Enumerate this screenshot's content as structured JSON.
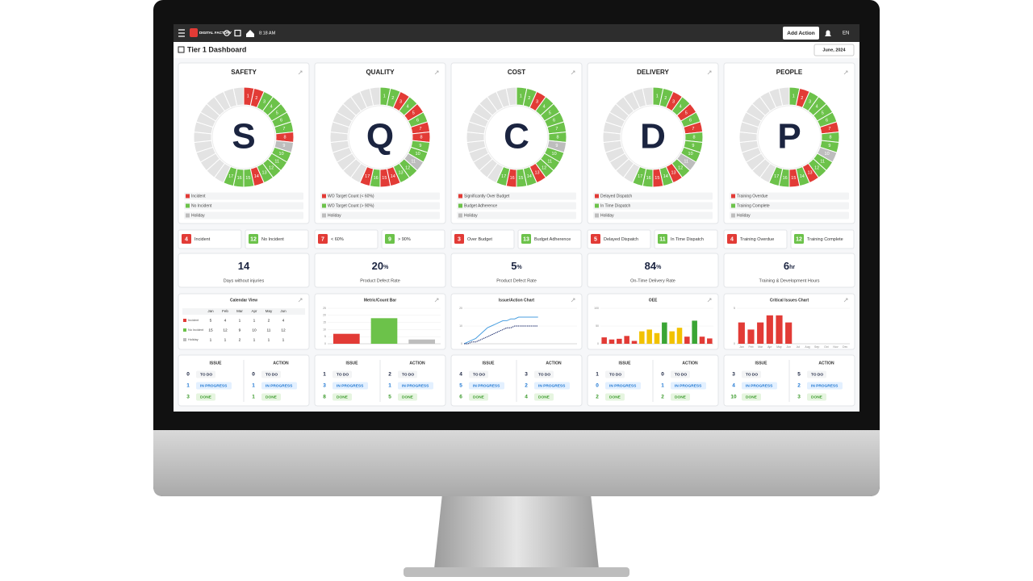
{
  "topbar": {
    "brand": "DIGITAL FACTORY",
    "time": "8:18 AM",
    "button": "Add Action",
    "language": "EN"
  },
  "header": {
    "title": "Tier 1 Dashboard",
    "period": "June, 2024"
  },
  "status_colors": {
    "b": "#e23b36",
    "g": "#6cc24a",
    "h": "#bdbdbd"
  },
  "labels": {
    "issue": "ISSUE",
    "action": "ACTION",
    "todo": "TO DO",
    "in_progress": "IN PROGRESS",
    "done": "DONE"
  },
  "pillars": [
    {
      "title": "SAFETY",
      "letter": "S",
      "days": [
        1,
        2,
        3,
        4,
        5,
        6,
        7,
        8,
        9,
        10,
        11,
        12,
        13,
        14,
        15,
        16,
        17
      ],
      "status": [
        "b",
        "b",
        "g",
        "g",
        "g",
        "g",
        "g",
        "b",
        "h",
        "g",
        "g",
        "g",
        "g",
        "b",
        "g",
        "g",
        "g"
      ],
      "legend": [
        "Incident",
        "No Incident",
        "Holiday"
      ],
      "counts": [
        {
          "value": 4,
          "label": "Incident"
        },
        {
          "value": 12,
          "label": "No Incident"
        }
      ],
      "kpi": {
        "value": 14,
        "label": "Days without injuries"
      },
      "issue": [
        0,
        1,
        3
      ],
      "action": [
        0,
        1,
        1
      ]
    },
    {
      "title": "QUALITY",
      "letter": "Q",
      "days": [
        1,
        2,
        3,
        4,
        5,
        6,
        7,
        8,
        9,
        10,
        11,
        12,
        13,
        14,
        15,
        16,
        17
      ],
      "status": [
        "g",
        "g",
        "b",
        "g",
        "b",
        "g",
        "b",
        "b",
        "g",
        "g",
        "h",
        "g",
        "g",
        "b",
        "b",
        "g",
        "b"
      ],
      "legend": [
        "WO Target Count (< 60%)",
        "WO Target Count (> 90%)",
        "Holiday"
      ],
      "counts": [
        {
          "value": 7,
          "label": "< 60%"
        },
        {
          "value": 9,
          "label": "> 90%"
        }
      ],
      "kpi": {
        "value": 20,
        "unit": "%",
        "label": "Product Defect Rate"
      },
      "issue": [
        1,
        3,
        8
      ],
      "action": [
        2,
        1,
        5
      ]
    },
    {
      "title": "COST",
      "letter": "C",
      "days": [
        1,
        2,
        3,
        4,
        5,
        6,
        7,
        8,
        9,
        10,
        11,
        12,
        13,
        14,
        15,
        16,
        17
      ],
      "status": [
        "g",
        "g",
        "b",
        "g",
        "g",
        "g",
        "g",
        "g",
        "h",
        "g",
        "g",
        "g",
        "b",
        "g",
        "g",
        "b",
        "g"
      ],
      "legend": [
        "Significantly Over Budget",
        "Budget Adherence",
        "Holiday"
      ],
      "counts": [
        {
          "value": 3,
          "label": "Over Budget"
        },
        {
          "value": 13,
          "label": "Budget Adherence"
        }
      ],
      "kpi": {
        "value": 5,
        "unit": "%",
        "label": "Product Defect Rate"
      },
      "issue": [
        4,
        5,
        6
      ],
      "action": [
        3,
        2,
        4
      ]
    },
    {
      "title": "DELIVERY",
      "letter": "D",
      "days": [
        1,
        2,
        3,
        4,
        5,
        6,
        7,
        8,
        9,
        10,
        11,
        12,
        13,
        14,
        15,
        16,
        17
      ],
      "status": [
        "g",
        "g",
        "b",
        "g",
        "b",
        "g",
        "b",
        "g",
        "g",
        "g",
        "h",
        "g",
        "b",
        "g",
        "b",
        "g",
        "g"
      ],
      "legend": [
        "Delayed Dispatch",
        "In Time Dispatch",
        "Holiday"
      ],
      "counts": [
        {
          "value": 5,
          "label": "Delayed Dispatch"
        },
        {
          "value": 11,
          "label": "In Time Dispatch"
        }
      ],
      "kpi": {
        "value": 84,
        "unit": "%",
        "label": "On-Time Delivery Rate"
      },
      "issue": [
        1,
        0,
        2
      ],
      "action": [
        0,
        1,
        2
      ]
    },
    {
      "title": "PEOPLE",
      "letter": "P",
      "days": [
        1,
        2,
        3,
        4,
        5,
        6,
        7,
        8,
        9,
        10,
        11,
        12,
        13,
        14,
        15,
        16,
        17
      ],
      "status": [
        "g",
        "b",
        "g",
        "g",
        "g",
        "g",
        "b",
        "g",
        "g",
        "h",
        "g",
        "g",
        "b",
        "g",
        "b",
        "g",
        "g"
      ],
      "legend": [
        "Training Overdue",
        "Training Complete",
        "Holiday"
      ],
      "counts": [
        {
          "value": 4,
          "label": "Training Overdue"
        },
        {
          "value": 12,
          "label": "Training Complete"
        }
      ],
      "kpi": {
        "value": 6,
        "unit": "hr",
        "label": "Training & Development Hours"
      },
      "issue": [
        3,
        4,
        10
      ],
      "action": [
        5,
        2,
        3
      ]
    }
  ],
  "charts": [
    {
      "type": "table",
      "title": "Calendar View",
      "months": [
        "Jan",
        "Feb",
        "Mar",
        "Apr",
        "May",
        "Jun"
      ],
      "rows": [
        {
          "name": "Incident",
          "color": "#e23b36",
          "values": [
            5,
            4,
            1,
            1,
            2,
            4
          ]
        },
        {
          "name": "No Incident",
          "color": "#6cc24a",
          "values": [
            15,
            12,
            9,
            10,
            11,
            12
          ]
        },
        {
          "name": "Holiday",
          "color": "#bdbdbd",
          "values": [
            1,
            1,
            2,
            1,
            1,
            1
          ]
        }
      ]
    },
    {
      "type": "bar",
      "title": "Metric/Count Bar",
      "categories": [
        null,
        null,
        null
      ],
      "values": [
        7,
        18,
        3
      ],
      "colors": [
        "#e23b36",
        "#6cc24a",
        "#bdbdbd"
      ],
      "ylim": [
        0,
        25
      ],
      "yticks": [
        0,
        5,
        10,
        15,
        20,
        25
      ]
    },
    {
      "type": "line",
      "title": "Issue/Action Chart",
      "x": [
        1,
        2,
        3,
        4,
        5,
        6,
        7,
        8,
        9,
        10,
        11,
        12,
        13,
        14,
        15,
        16,
        17,
        18,
        19,
        20
      ],
      "xlim": [
        1,
        30
      ],
      "ylim": [
        0,
        20
      ],
      "yticks": [
        0,
        10,
        20
      ],
      "series": [
        {
          "color": "#4a9fe0",
          "values": [
            0,
            1,
            2,
            3,
            5,
            7,
            9,
            10,
            11,
            12,
            13,
            13,
            14,
            14,
            15,
            15,
            15,
            15,
            15,
            15
          ]
        },
        {
          "color": "#1f2f6e",
          "values": [
            0,
            0,
            1,
            1,
            2,
            3,
            4,
            5,
            6,
            7,
            8,
            9,
            9,
            10,
            10,
            10,
            10,
            10,
            10,
            10
          ]
        }
      ]
    },
    {
      "type": "bar",
      "title": "OEE",
      "categories": [
        null,
        null,
        null,
        null,
        null,
        null,
        null,
        null,
        null,
        null,
        null,
        null,
        null,
        null,
        null
      ],
      "values": [
        18,
        12,
        14,
        22,
        8,
        35,
        40,
        30,
        60,
        35,
        45,
        20,
        65,
        20,
        15
      ],
      "colors": [
        "#e23b36",
        "#e23b36",
        "#e23b36",
        "#e23b36",
        "#e23b36",
        "#f2c200",
        "#f2c200",
        "#f2c200",
        "#3aa535",
        "#f2c200",
        "#f2c200",
        "#e23b36",
        "#3aa535",
        "#e23b36",
        "#e23b36"
      ],
      "ylim": [
        0,
        100
      ],
      "yticks": [
        0,
        50,
        100
      ]
    },
    {
      "type": "bar",
      "title": "Critical Issues Chart",
      "categories": [
        "Jan",
        "Feb",
        "Mar",
        "Apr",
        "May",
        "Jun",
        "Jul",
        "Aug",
        "Sep",
        "Oct",
        "Nov",
        "Dec"
      ],
      "values": [
        3,
        2,
        3,
        4,
        4,
        3,
        null,
        null,
        null,
        null,
        null,
        null
      ],
      "color": "#e23b36",
      "ylim": [
        0,
        5
      ],
      "yticks": [
        0,
        5
      ]
    }
  ]
}
